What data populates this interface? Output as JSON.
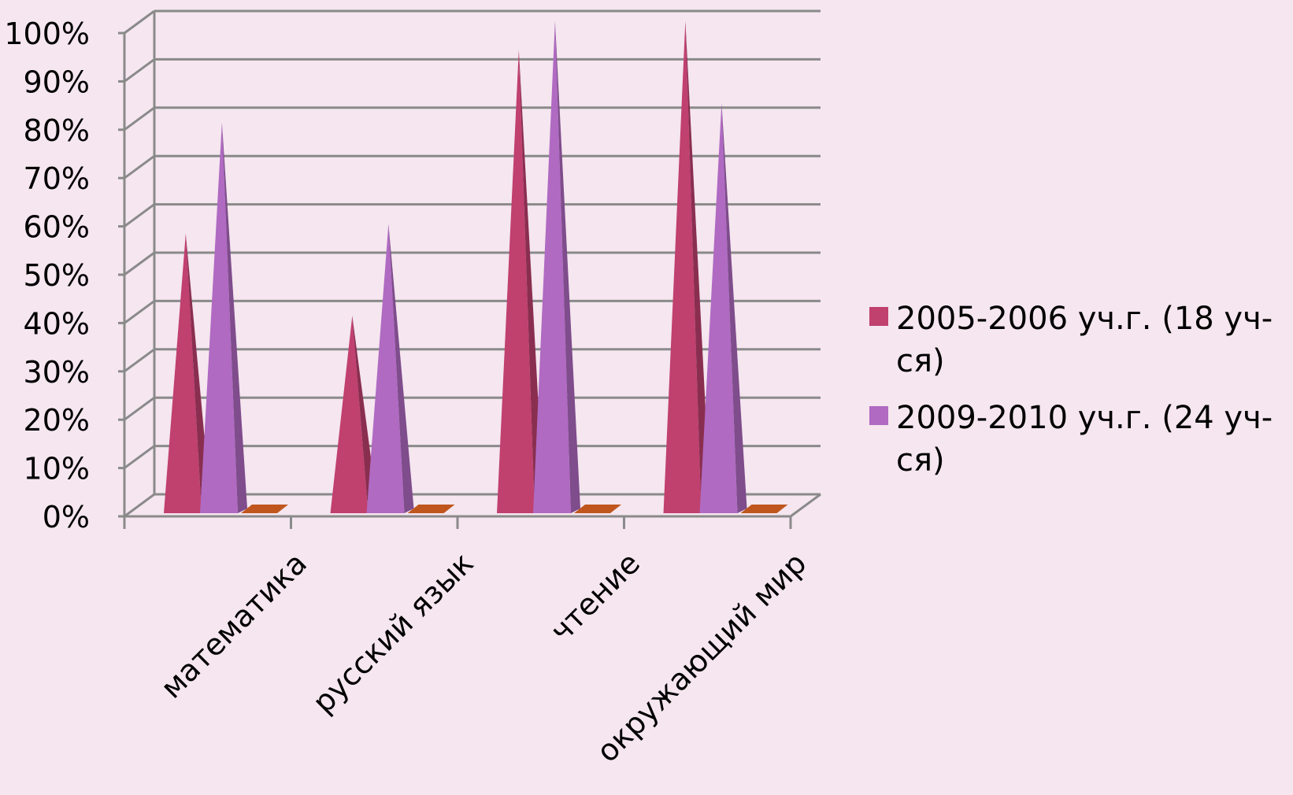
{
  "chart_data": {
    "type": "bar",
    "style": "3d-pyramid",
    "title": "",
    "xlabel": "",
    "ylabel": "",
    "categories": [
      "математика",
      "русский язык",
      "чтение",
      "окружающий мир"
    ],
    "series": [
      {
        "name": "2005-2006 уч.г. (18 уч-ся)",
        "legend_lines": [
          "2005-2006 уч.г. (18 уч-",
          "ся)"
        ],
        "color": "#c0406e",
        "values": [
          56,
          39,
          94,
          100
        ]
      },
      {
        "name": "2009-2010 уч.г. (24 уч-ся)",
        "legend_lines": [
          "2009-2010 уч.г. (24 уч-",
          "ся)"
        ],
        "color": "#b06ac2",
        "values": [
          79,
          58,
          100,
          83
        ]
      }
    ],
    "hidden_series_color": "#c0561e",
    "ylim": [
      0,
      100
    ],
    "yticks": [
      "0%",
      "10%",
      "20%",
      "30%",
      "40%",
      "50%",
      "60%",
      "70%",
      "80%",
      "90%",
      "100%"
    ],
    "grid": true,
    "legend_position": "right",
    "background": "#f5e6ef"
  }
}
